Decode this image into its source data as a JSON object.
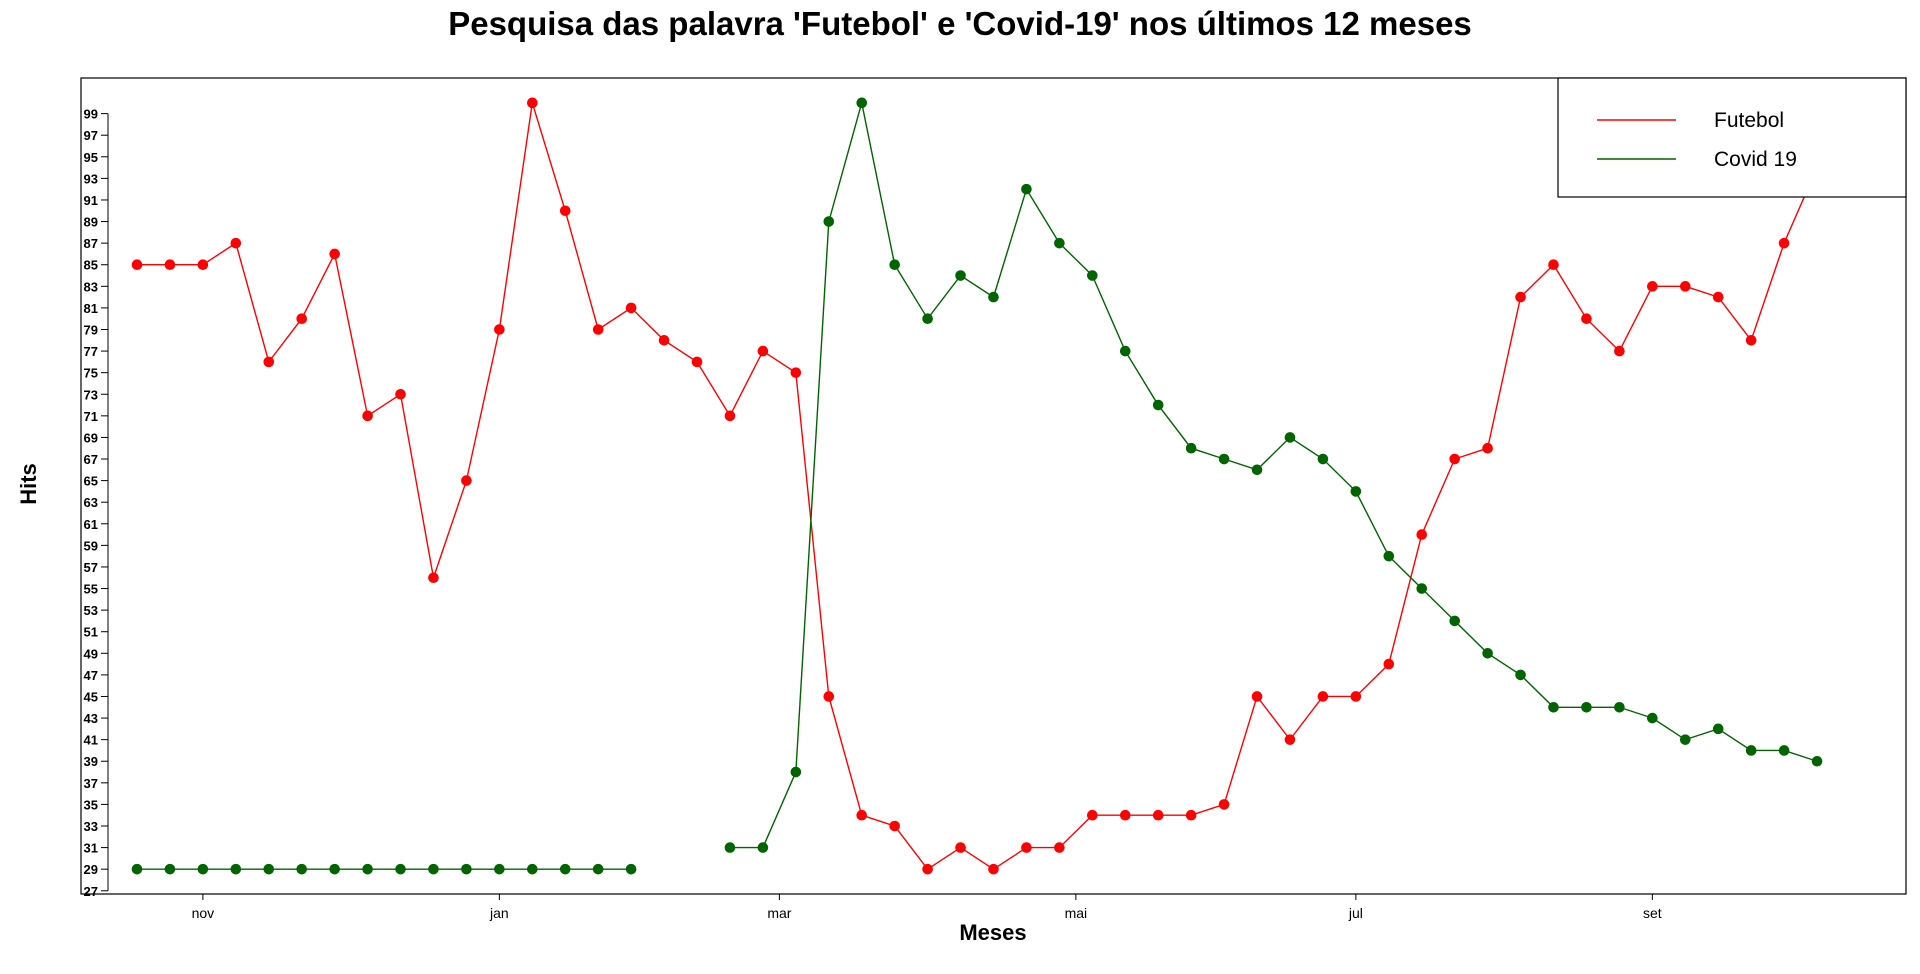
{
  "chart_data": {
    "type": "line",
    "title": "Pesquisa das palavra 'Futebol' e 'Covid-19' nos últimos 12 meses",
    "xlabel": "Meses",
    "ylabel": "Hits",
    "x_tick_labels": [
      "nov",
      "jan",
      "mar",
      "mai",
      "jul",
      "set"
    ],
    "x_tick_positions": [
      2,
      11,
      19.5,
      28.5,
      37,
      46
    ],
    "y_ticks": [
      27,
      29,
      31,
      33,
      35,
      37,
      39,
      41,
      43,
      45,
      47,
      49,
      51,
      53,
      55,
      57,
      59,
      61,
      63,
      65,
      67,
      69,
      71,
      73,
      75,
      77,
      79,
      81,
      83,
      85,
      87,
      89,
      91,
      93,
      95,
      97,
      99
    ],
    "xlim": [
      -1.7,
      53.7
    ],
    "ylim": [
      26.7,
      102.3
    ],
    "grid": false,
    "legend_position": "top-right",
    "series": [
      {
        "name": "Futebol",
        "color": "#ff0000",
        "values": [
          85,
          85,
          85,
          87,
          76,
          80,
          86,
          71,
          73,
          56,
          65,
          79,
          100,
          90,
          79,
          81,
          78,
          76,
          71,
          77,
          75,
          45,
          34,
          33,
          29,
          31,
          29,
          31,
          31,
          34,
          34,
          34,
          34,
          35,
          45,
          41,
          45,
          45,
          48,
          60,
          67,
          68,
          82,
          85,
          80,
          77,
          83,
          83,
          82,
          78,
          87,
          94
        ]
      },
      {
        "name": "Covid 19",
        "color": "#006400",
        "values": [
          29,
          29,
          29,
          29,
          29,
          29,
          29,
          29,
          29,
          29,
          29,
          29,
          29,
          29,
          29,
          29,
          null,
          null,
          31,
          31,
          38,
          89,
          100,
          85,
          80,
          84,
          82,
          92,
          87,
          84,
          77,
          72,
          68,
          67,
          66,
          69,
          67,
          64,
          58,
          55,
          52,
          49,
          47,
          44,
          44,
          44,
          43,
          41,
          42,
          40,
          40,
          39
        ]
      }
    ]
  }
}
